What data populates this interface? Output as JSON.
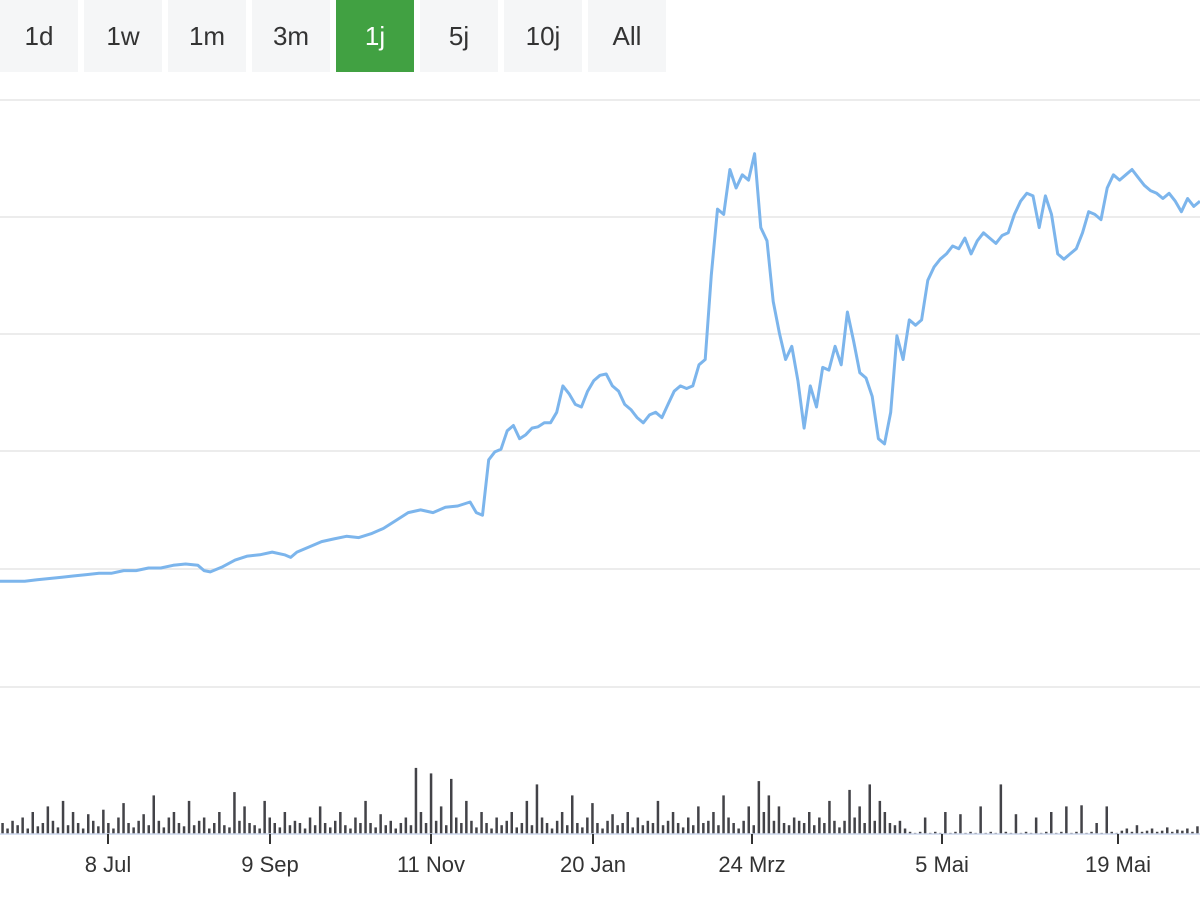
{
  "range_selector": {
    "buttons": [
      {
        "label": "1d",
        "active": false
      },
      {
        "label": "1w",
        "active": false
      },
      {
        "label": "1m",
        "active": false
      },
      {
        "label": "3m",
        "active": false
      },
      {
        "label": "1j",
        "active": true
      },
      {
        "label": "5j",
        "active": false
      },
      {
        "label": "10j",
        "active": false
      },
      {
        "label": "All",
        "active": false
      }
    ],
    "active_color": "#41a142"
  },
  "chart_data": {
    "type": "line",
    "title": "",
    "xlabel": "",
    "ylabel": "",
    "grid": true,
    "line_color": "#7cb5ec",
    "volume_color": "#434348",
    "x_ticks": [
      "8 Jul",
      "9 Sep",
      "11 Nov",
      "20 Jan",
      "24 Mrz",
      "5 Mai",
      "19 Mai"
    ],
    "price_series": [
      [
        0,
        0.06
      ],
      [
        8,
        0.06
      ],
      [
        12,
        0.065
      ],
      [
        16,
        0.07
      ],
      [
        20,
        0.075
      ],
      [
        24,
        0.08
      ],
      [
        28,
        0.085
      ],
      [
        32,
        0.09
      ],
      [
        36,
        0.09
      ],
      [
        40,
        0.1
      ],
      [
        44,
        0.1
      ],
      [
        48,
        0.11
      ],
      [
        52,
        0.11
      ],
      [
        56,
        0.12
      ],
      [
        60,
        0.125
      ],
      [
        64,
        0.12
      ],
      [
        66,
        0.1
      ],
      [
        68,
        0.095
      ],
      [
        72,
        0.115
      ],
      [
        76,
        0.14
      ],
      [
        80,
        0.155
      ],
      [
        84,
        0.16
      ],
      [
        88,
        0.17
      ],
      [
        92,
        0.16
      ],
      [
        94,
        0.15
      ],
      [
        96,
        0.17
      ],
      [
        100,
        0.19
      ],
      [
        104,
        0.21
      ],
      [
        108,
        0.22
      ],
      [
        112,
        0.23
      ],
      [
        116,
        0.225
      ],
      [
        120,
        0.24
      ],
      [
        124,
        0.26
      ],
      [
        128,
        0.29
      ],
      [
        132,
        0.32
      ],
      [
        136,
        0.33
      ],
      [
        140,
        0.32
      ],
      [
        144,
        0.34
      ],
      [
        148,
        0.345
      ],
      [
        152,
        0.36
      ],
      [
        154,
        0.32
      ],
      [
        156,
        0.31
      ],
      [
        158,
        0.52
      ],
      [
        160,
        0.55
      ],
      [
        162,
        0.56
      ],
      [
        164,
        0.63
      ],
      [
        166,
        0.65
      ],
      [
        168,
        0.6
      ],
      [
        170,
        0.615
      ],
      [
        172,
        0.64
      ],
      [
        174,
        0.645
      ],
      [
        176,
        0.66
      ],
      [
        178,
        0.66
      ],
      [
        180,
        0.7
      ],
      [
        182,
        0.8
      ],
      [
        184,
        0.77
      ],
      [
        186,
        0.73
      ],
      [
        188,
        0.72
      ],
      [
        190,
        0.78
      ],
      [
        192,
        0.82
      ],
      [
        194,
        0.84
      ],
      [
        196,
        0.845
      ],
      [
        198,
        0.8
      ],
      [
        200,
        0.78
      ],
      [
        202,
        0.73
      ],
      [
        204,
        0.71
      ],
      [
        206,
        0.68
      ],
      [
        208,
        0.66
      ],
      [
        210,
        0.69
      ],
      [
        212,
        0.7
      ],
      [
        214,
        0.68
      ],
      [
        216,
        0.73
      ],
      [
        218,
        0.78
      ],
      [
        220,
        0.8
      ],
      [
        222,
        0.79
      ],
      [
        224,
        0.8
      ],
      [
        226,
        0.88
      ],
      [
        228,
        0.9
      ],
      [
        230,
        1.22
      ],
      [
        232,
        1.47
      ],
      [
        234,
        1.45
      ],
      [
        236,
        1.62
      ],
      [
        238,
        1.55
      ],
      [
        240,
        1.6
      ],
      [
        242,
        1.58
      ],
      [
        244,
        1.68
      ],
      [
        246,
        1.4
      ],
      [
        248,
        1.35
      ],
      [
        250,
        1.12
      ],
      [
        252,
        1.0
      ],
      [
        254,
        0.9
      ],
      [
        256,
        0.95
      ],
      [
        258,
        0.82
      ],
      [
        260,
        0.64
      ],
      [
        262,
        0.8
      ],
      [
        264,
        0.72
      ],
      [
        266,
        0.87
      ],
      [
        268,
        0.86
      ],
      [
        270,
        0.95
      ],
      [
        272,
        0.88
      ],
      [
        274,
        1.08
      ],
      [
        276,
        0.97
      ],
      [
        278,
        0.85
      ],
      [
        280,
        0.83
      ],
      [
        282,
        0.76
      ],
      [
        284,
        0.6
      ],
      [
        286,
        0.58
      ],
      [
        288,
        0.7
      ],
      [
        290,
        0.99
      ],
      [
        292,
        0.9
      ],
      [
        294,
        1.05
      ],
      [
        296,
        1.03
      ],
      [
        298,
        1.05
      ],
      [
        300,
        1.2
      ],
      [
        302,
        1.25
      ],
      [
        304,
        1.28
      ],
      [
        306,
        1.3
      ],
      [
        308,
        1.33
      ],
      [
        310,
        1.32
      ],
      [
        312,
        1.36
      ],
      [
        314,
        1.3
      ],
      [
        316,
        1.35
      ],
      [
        318,
        1.38
      ],
      [
        320,
        1.36
      ],
      [
        322,
        1.34
      ],
      [
        324,
        1.37
      ],
      [
        326,
        1.38
      ],
      [
        328,
        1.45
      ],
      [
        330,
        1.5
      ],
      [
        332,
        1.53
      ],
      [
        334,
        1.52
      ],
      [
        336,
        1.4
      ],
      [
        338,
        1.52
      ],
      [
        340,
        1.45
      ],
      [
        342,
        1.3
      ],
      [
        344,
        1.28
      ],
      [
        346,
        1.3
      ],
      [
        348,
        1.32
      ],
      [
        350,
        1.38
      ],
      [
        352,
        1.46
      ],
      [
        354,
        1.45
      ],
      [
        356,
        1.43
      ],
      [
        358,
        1.55
      ],
      [
        360,
        1.6
      ],
      [
        362,
        1.58
      ],
      [
        364,
        1.6
      ],
      [
        366,
        1.62
      ],
      [
        368,
        1.59
      ],
      [
        370,
        1.56
      ],
      [
        372,
        1.54
      ],
      [
        374,
        1.53
      ],
      [
        376,
        1.51
      ],
      [
        378,
        1.53
      ],
      [
        380,
        1.5
      ],
      [
        382,
        1.46
      ],
      [
        384,
        1.51
      ],
      [
        386,
        1.48
      ],
      [
        388,
        1.5
      ]
    ],
    "volume_series": [
      0.1,
      0.05,
      0.12,
      0.08,
      0.15,
      0.05,
      0.2,
      0.07,
      0.1,
      0.25,
      0.12,
      0.06,
      0.3,
      0.08,
      0.2,
      0.1,
      0.05,
      0.18,
      0.12,
      0.07,
      0.22,
      0.1,
      0.05,
      0.15,
      0.28,
      0.1,
      0.06,
      0.12,
      0.18,
      0.08,
      0.35,
      0.12,
      0.06,
      0.15,
      0.2,
      0.1,
      0.07,
      0.3,
      0.08,
      0.12,
      0.15,
      0.05,
      0.1,
      0.2,
      0.08,
      0.06,
      0.38,
      0.12,
      0.25,
      0.1,
      0.08,
      0.05,
      0.3,
      0.15,
      0.1,
      0.06,
      0.2,
      0.08,
      0.12,
      0.1,
      0.05,
      0.15,
      0.08,
      0.25,
      0.1,
      0.06,
      0.12,
      0.2,
      0.08,
      0.05,
      0.15,
      0.1,
      0.3,
      0.1,
      0.06,
      0.18,
      0.08,
      0.12,
      0.05,
      0.1,
      0.15,
      0.08,
      0.6,
      0.2,
      0.1,
      0.55,
      0.12,
      0.25,
      0.08,
      0.5,
      0.15,
      0.1,
      0.3,
      0.12,
      0.06,
      0.2,
      0.1,
      0.05,
      0.15,
      0.08,
      0.12,
      0.2,
      0.06,
      0.1,
      0.3,
      0.08,
      0.45,
      0.15,
      0.1,
      0.05,
      0.12,
      0.2,
      0.08,
      0.35,
      0.1,
      0.06,
      0.15,
      0.28,
      0.1,
      0.05,
      0.12,
      0.18,
      0.08,
      0.1,
      0.2,
      0.06,
      0.15,
      0.08,
      0.12,
      0.1,
      0.3,
      0.08,
      0.12,
      0.2,
      0.1,
      0.06,
      0.15,
      0.08,
      0.25,
      0.1,
      0.12,
      0.2,
      0.08,
      0.35,
      0.15,
      0.1,
      0.05,
      0.12,
      0.25,
      0.08,
      0.48,
      0.2,
      0.35,
      0.12,
      0.25,
      0.1,
      0.08,
      0.15,
      0.12,
      0.1,
      0.2,
      0.08,
      0.15,
      0.1,
      0.3,
      0.12,
      0.06,
      0.12,
      0.4,
      0.15,
      0.25,
      0.1,
      0.45,
      0.12,
      0.3,
      0.2,
      0.1,
      0.08,
      0.12,
      0.05,
      0.02,
      0.01,
      0.02,
      0.15,
      0.01,
      0.02,
      0.01,
      0.2,
      0.01,
      0.02,
      0.18,
      0.01,
      0.02,
      0.01,
      0.25,
      0.01,
      0.02,
      0.01,
      0.45,
      0.02,
      0.01,
      0.18,
      0.01,
      0.02,
      0.01,
      0.15,
      0.01,
      0.02,
      0.2,
      0.01,
      0.02,
      0.25,
      0.01,
      0.02,
      0.26,
      0.01,
      0.02,
      0.1,
      0.01,
      0.25,
      0.02,
      0.01,
      0.03,
      0.05,
      0.02,
      0.08,
      0.02,
      0.03,
      0.05,
      0.02,
      0.03,
      0.06,
      0.02,
      0.04,
      0.03,
      0.05,
      0.02,
      0.07
    ]
  }
}
